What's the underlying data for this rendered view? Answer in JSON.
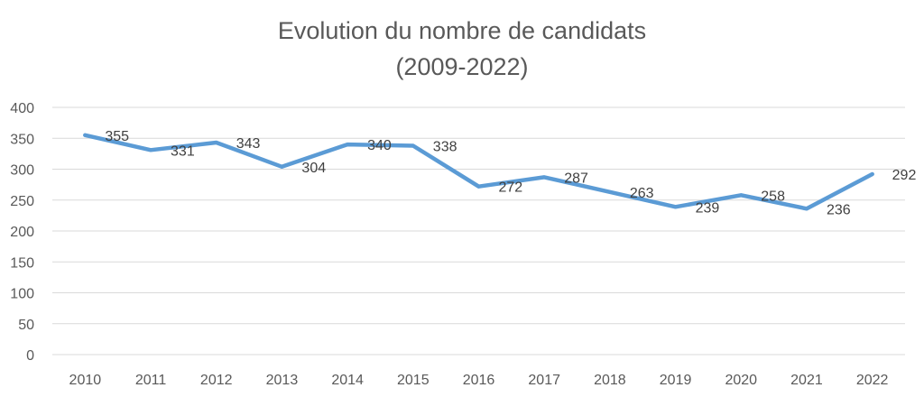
{
  "chart_data": {
    "type": "line",
    "title": "Evolution du nombre de candidats",
    "subtitle": "(2009-2022)",
    "categories": [
      "2010",
      "2011",
      "2012",
      "2013",
      "2014",
      "2015",
      "2016",
      "2017",
      "2018",
      "2019",
      "2020",
      "2021",
      "2022"
    ],
    "series": [
      {
        "values": [
          355,
          331,
          343,
          304,
          340,
          338,
          272,
          287,
          263,
          239,
          258,
          236,
          292
        ]
      }
    ],
    "ylim": [
      0,
      400
    ],
    "yticks": [
      0,
      50,
      100,
      150,
      200,
      250,
      300,
      350,
      400
    ],
    "grid": true,
    "legend": "none",
    "colors": {
      "line": "#5B9BD5",
      "grid": "#d9d9d9",
      "text": "#595959"
    }
  }
}
